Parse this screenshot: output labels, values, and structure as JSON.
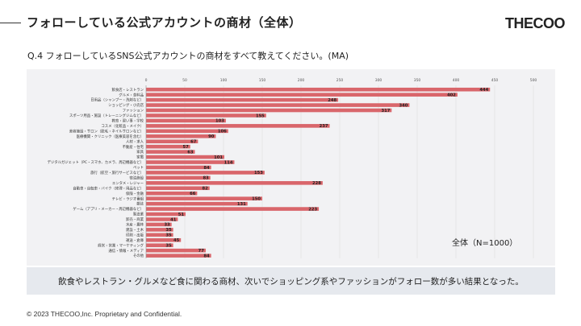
{
  "header": {
    "title": "フォローしている公式アカウントの商材（全体）",
    "logo": "THECOO"
  },
  "question": "Q.4 フォローしているSNS公式アカウントの商材をすべて教えてください。(MA)",
  "summary": "飲食やレストラン・グルメなど食に関わる商材、次いでショッピング系やファッションがフォロー数が多い結果となった。",
  "footer": "© 2023 THECOO,Inc. Proprietary and Confidential.",
  "chart_data": {
    "type": "bar",
    "orientation": "horizontal",
    "title": "",
    "legend_note": "全体（N=1000）",
    "color": "#d9666b",
    "xlim": [
      0,
      500
    ],
    "ticks": [
      0,
      50,
      100,
      150,
      200,
      250,
      300,
      350,
      400,
      450,
      500
    ],
    "grid": true,
    "categories": [
      "飲食店・レストラン",
      "グルメ・食料品",
      "日用品（シャンプー・洗剤など）",
      "ショッピング・小売店",
      "ファッション",
      "スポーツ用品・施設（トレーニングジムなど）",
      "教育・習い事・学校",
      "コスメ（化粧品・メイク）",
      "美容施設・サロン（脱毛・ネイルサロンなど）",
      "医療機関・クリニック（医療美容を含む）",
      "人材・求人",
      "不動産・住宅",
      "家具",
      "家電",
      "デジタルガジェット（PC・スマホ、カメラ、周辺機器など）",
      "ペット",
      "旅行（航空・旅行サービスなど）",
      "宿泊施設",
      "エンタメ・レジャー",
      "自動車・自転車・バイク（修理・用品など）",
      "保険・金融",
      "テレビ・ラジオ番組",
      "雑誌",
      "ゲーム（アプリ・メーカー・周辺機器など）",
      "製造業",
      "卸売・商業",
      "水産・農林",
      "建設・土木",
      "印刷・出版",
      "運送・倉庫",
      "経営・営業・マーケティング",
      "通信・情報・メディア",
      "その他"
    ],
    "values": [
      444,
      402,
      248,
      340,
      317,
      155,
      103,
      237,
      106,
      90,
      67,
      57,
      63,
      101,
      114,
      84,
      153,
      83,
      228,
      82,
      66,
      150,
      131,
      223,
      51,
      41,
      33,
      35,
      35,
      45,
      35,
      77,
      84
    ]
  }
}
